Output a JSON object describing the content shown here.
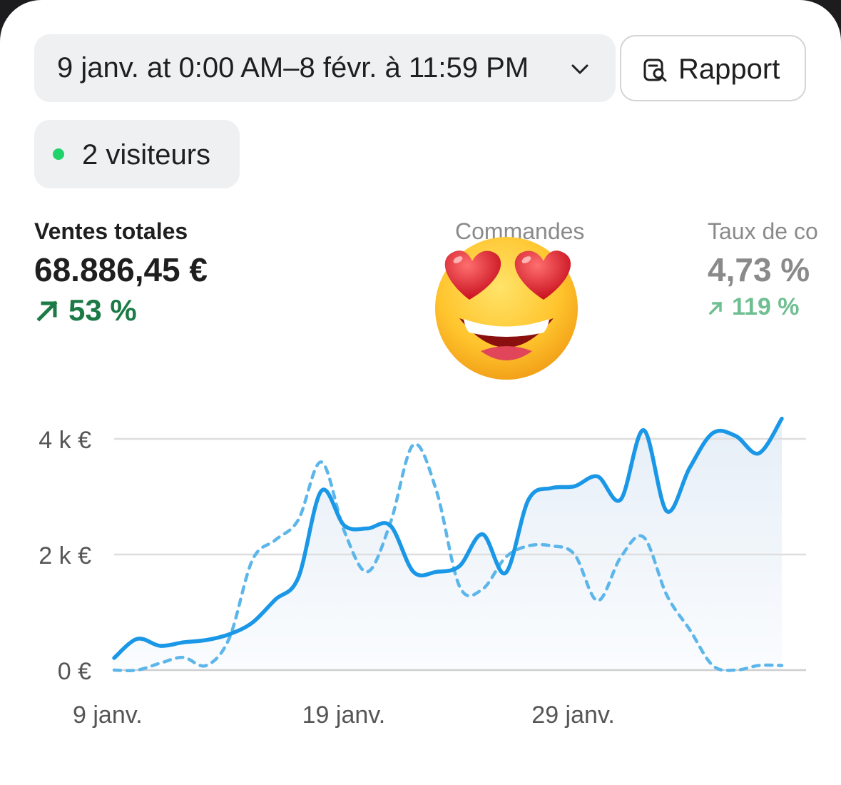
{
  "toolbar": {
    "date_range": "9 janv. at 0:00 AM–8 févr. à 11:59 PM",
    "report_label": "Rapport"
  },
  "live": {
    "visitors_label": "2 visiteurs"
  },
  "metrics": [
    {
      "label": "Ventes totales",
      "value": "68.886,45 €",
      "change": "53 %"
    },
    {
      "label": "Commandes",
      "value": "",
      "change": ""
    },
    {
      "label": "Taux de co",
      "value": "4,73 %",
      "change": "119 %"
    }
  ],
  "overlay_emoji": "smiling-face-with-heart-eyes",
  "colors": {
    "primary_line": "#1a97e6",
    "comparison_line": "#5db6ea",
    "positive_change": "#1b7a45",
    "positive_change_muted": "#6fbf92",
    "live_dot": "#1fd36a"
  },
  "chart_data": {
    "type": "line",
    "ylim": [
      0,
      4000
    ],
    "y_ticks": [
      "0 €",
      "2 k €",
      "4 k €"
    ],
    "x_tick_labels": [
      "9 janv.",
      "19 janv.",
      "29 janv."
    ],
    "grid": true,
    "series": [
      {
        "style": "solid",
        "values": [
          210,
          540,
          420,
          480,
          520,
          620,
          820,
          1220,
          1600,
          3100,
          2500,
          2450,
          2500,
          1700,
          1700,
          1800,
          2350,
          1680,
          2950,
          3150,
          3180,
          3350,
          2950,
          4150,
          2750,
          3500,
          4100,
          4050,
          3750,
          4350
        ]
      },
      {
        "style": "dashed",
        "values": [
          0,
          0,
          120,
          220,
          80,
          550,
          1900,
          2250,
          2600,
          3600,
          2400,
          1700,
          2550,
          3900,
          3100,
          1450,
          1400,
          1950,
          2150,
          2150,
          2000,
          1200,
          1950,
          2300,
          1300,
          700,
          80,
          0,
          80,
          80
        ]
      }
    ]
  }
}
